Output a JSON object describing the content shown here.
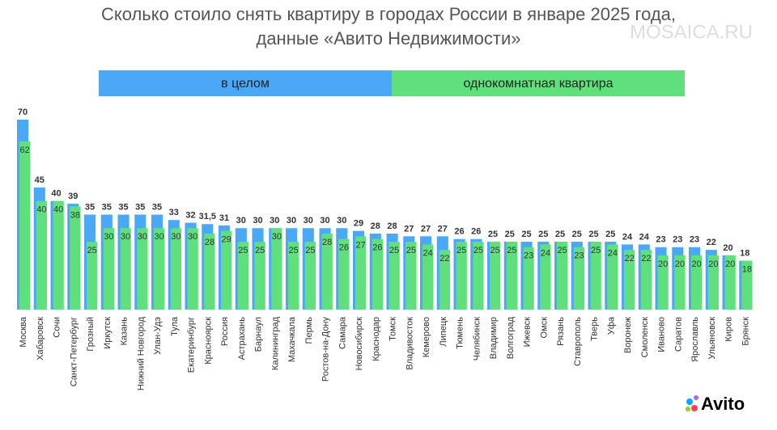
{
  "chart_data": {
    "type": "bar",
    "title": "Сколько стоило снять квартиру в городах России в январе 2025 года,",
    "subtitle": "данные «Авито Недвижимости»",
    "watermark": "MOSAICA.RU",
    "logo": "Avito",
    "categories": [
      "Москва",
      "Хабаровск",
      "Сочи",
      "Санкт-Петербург",
      "Грозный",
      "Иркутск",
      "Казань",
      "Нижний Новгород",
      "Улан-Удэ",
      "Тула",
      "Екатеринбург",
      "Красноярск",
      "Россия",
      "Астрахань",
      "Барнаул",
      "Калининград",
      "Махачкала",
      "Пермь",
      "Ростов-на-Дону",
      "Самара",
      "Новосибирск",
      "Краснодар",
      "Томск",
      "Владивосток",
      "Кемерово",
      "Липецк",
      "Тюмень",
      "Челябинск",
      "Владимир",
      "Волгоград",
      "Ижевск",
      "Омск",
      "Рязань",
      "Ставрополь",
      "Тверь",
      "Уфа",
      "Воронеж",
      "Смоленск",
      "Иваново",
      "Саратов",
      "Ярославль",
      "Ульяновск",
      "Киров",
      "Брянск"
    ],
    "series": [
      {
        "name": "в целом",
        "color": "#4aa8f7",
        "values": [
          70,
          45,
          40,
          39,
          35,
          35,
          35,
          35,
          35,
          33,
          32,
          31.5,
          31,
          30,
          30,
          30,
          30,
          30,
          30,
          30,
          29,
          28,
          28,
          27,
          27,
          27,
          26,
          26,
          25,
          25,
          25,
          25,
          25,
          25,
          25,
          25,
          24,
          24,
          23,
          23,
          23,
          22,
          20,
          18
        ],
        "value_labels": [
          "70",
          "45",
          "40",
          "39",
          "35",
          "35",
          "35",
          "35",
          "35",
          "33",
          "32",
          "31,5",
          "31",
          "30",
          "30",
          "30",
          "30",
          "30",
          "30",
          "30",
          "29",
          "28",
          "28",
          "27",
          "27",
          "27",
          "26",
          "26",
          "25",
          "25",
          "25",
          "25",
          "25",
          "25",
          "25",
          "25",
          "24",
          "24",
          "23",
          "23",
          "23",
          "22",
          "20",
          "18"
        ]
      },
      {
        "name": "однокомнатная квартира",
        "color": "#5fe07c",
        "values": [
          62,
          40,
          40,
          38,
          25,
          30,
          30,
          30,
          30,
          30,
          30,
          28,
          29,
          25,
          25,
          30,
          25,
          25,
          28,
          26,
          27,
          26,
          25,
          25,
          24,
          22,
          25,
          25,
          25,
          25,
          23,
          24,
          25,
          23,
          25,
          24,
          22,
          22,
          20,
          20,
          20,
          20,
          20,
          18
        ]
      }
    ]
  }
}
